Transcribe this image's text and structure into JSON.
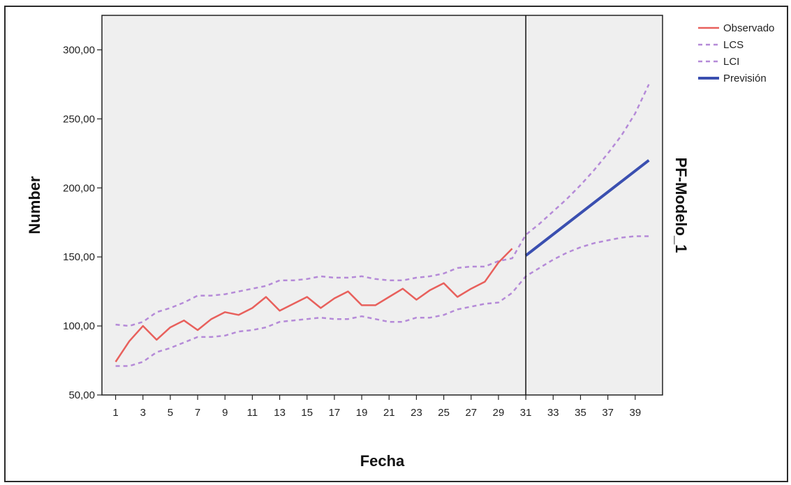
{
  "chart_data": {
    "type": "line",
    "xlabel": "Fecha",
    "ylabel": "Number",
    "panel_label": "PF-Modelo_1",
    "xlim": [
      0,
      41
    ],
    "ylim": [
      50,
      325
    ],
    "x_ticks": [
      1,
      3,
      5,
      7,
      9,
      11,
      13,
      15,
      17,
      19,
      21,
      23,
      25,
      27,
      29,
      31,
      33,
      35,
      37,
      39
    ],
    "y_ticks": [
      50,
      100,
      150,
      200,
      250,
      300
    ],
    "y_tick_labels": [
      "50,00",
      "100,00",
      "150,00",
      "200,00",
      "250,00",
      "300,00"
    ],
    "forecast_start": 31,
    "grid": false,
    "legend_position": "top-right",
    "series": [
      {
        "name": "Observado",
        "color": "#e8605c",
        "style": "solid",
        "x": [
          1,
          2,
          3,
          4,
          5,
          6,
          7,
          8,
          9,
          10,
          11,
          12,
          13,
          14,
          15,
          16,
          17,
          18,
          19,
          20,
          21,
          22,
          23,
          24,
          25,
          26,
          27,
          28,
          29,
          30
        ],
        "values": [
          74,
          89,
          100,
          90,
          99,
          104,
          97,
          105,
          110,
          108,
          113,
          121,
          111,
          116,
          121,
          113,
          120,
          125,
          115,
          115,
          121,
          127,
          119,
          126,
          131,
          121,
          127,
          132,
          146,
          156
        ]
      },
      {
        "name": "LCS",
        "color": "#b58ad8",
        "style": "dashed",
        "x": [
          1,
          2,
          3,
          4,
          5,
          6,
          7,
          8,
          9,
          10,
          11,
          12,
          13,
          14,
          15,
          16,
          17,
          18,
          19,
          20,
          21,
          22,
          23,
          24,
          25,
          26,
          27,
          28,
          29,
          30,
          31,
          32,
          33,
          34,
          35,
          36,
          37,
          38,
          39,
          40
        ],
        "values": [
          101,
          100,
          103,
          110,
          113,
          117,
          122,
          122,
          123,
          125,
          127,
          129,
          133,
          133,
          134,
          136,
          135,
          135,
          136,
          134,
          133,
          133,
          135,
          136,
          138,
          142,
          143,
          143,
          147,
          149,
          166,
          174,
          183,
          192,
          202,
          213,
          225,
          238,
          254,
          275
        ]
      },
      {
        "name": "LCI",
        "color": "#b58ad8",
        "style": "dashed",
        "x": [
          1,
          2,
          3,
          4,
          5,
          6,
          7,
          8,
          9,
          10,
          11,
          12,
          13,
          14,
          15,
          16,
          17,
          18,
          19,
          20,
          21,
          22,
          23,
          24,
          25,
          26,
          27,
          28,
          29,
          30,
          31,
          32,
          33,
          34,
          35,
          36,
          37,
          38,
          39,
          40
        ],
        "values": [
          71,
          71,
          74,
          81,
          84,
          88,
          92,
          92,
          93,
          96,
          97,
          99,
          103,
          104,
          105,
          106,
          105,
          105,
          107,
          105,
          103,
          103,
          106,
          106,
          108,
          112,
          114,
          116,
          117,
          124,
          136,
          142,
          148,
          153,
          157,
          160,
          162,
          164,
          165,
          165
        ]
      },
      {
        "name": "Previsión",
        "color": "#3a4fb0",
        "style": "solid",
        "x": [
          31,
          40
        ],
        "values": [
          151,
          220
        ]
      }
    ]
  }
}
